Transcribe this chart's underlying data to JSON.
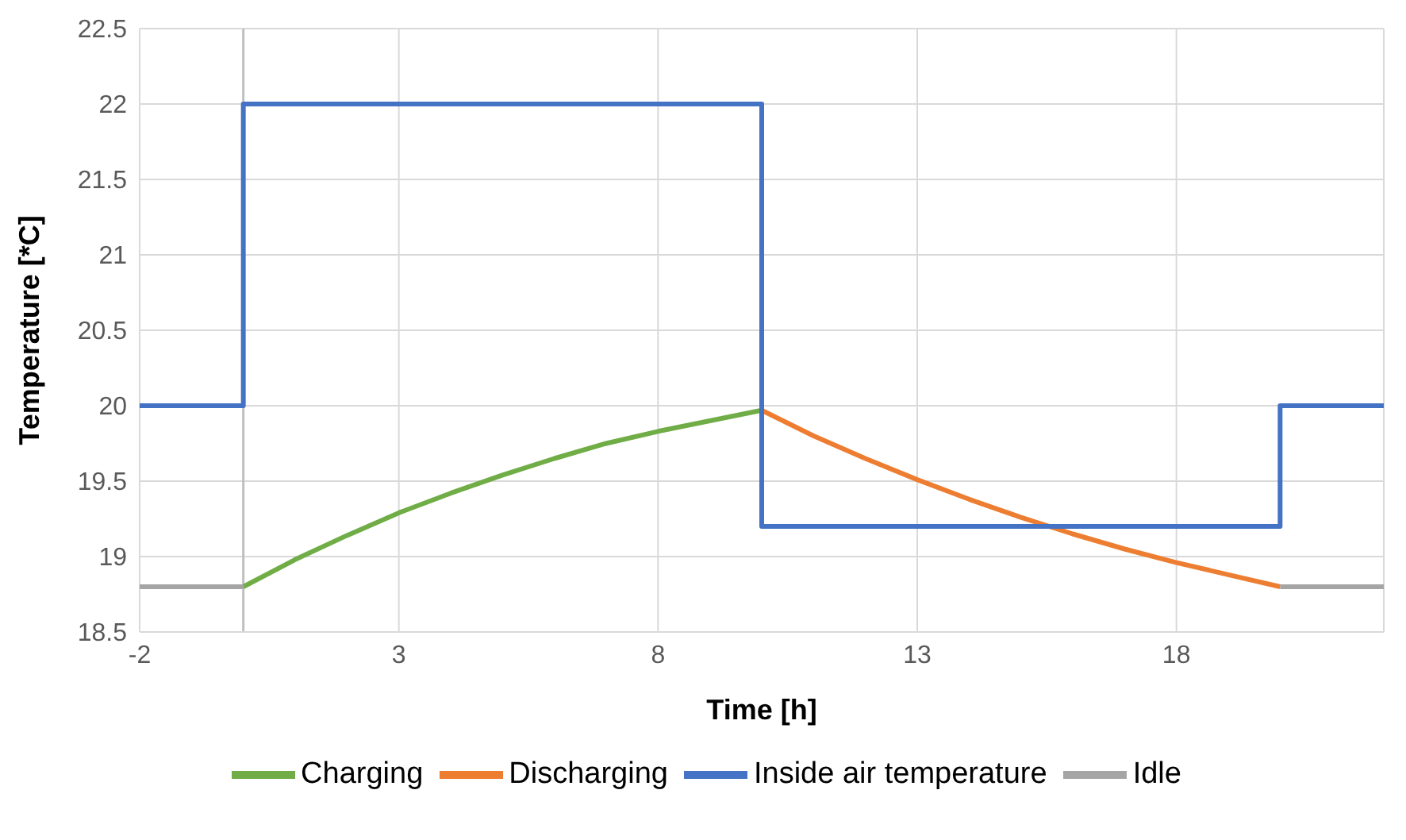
{
  "chart_data": {
    "type": "line",
    "xlabel": "Time [h]",
    "ylabel": "Temperature [*C]",
    "xlim": [
      -2,
      22
    ],
    "xticks": [
      -2,
      3,
      8,
      13,
      18
    ],
    "ylim": [
      18.5,
      22.5
    ],
    "yticks": [
      18.5,
      19,
      19.5,
      20,
      20.5,
      21,
      21.5,
      22,
      22.5
    ],
    "grid": true,
    "legend": "bottom",
    "marker": "none",
    "line_style": "solid",
    "ref_lines": [
      {
        "axis": "x",
        "value": 0,
        "color": "#bfbfbf"
      }
    ],
    "series": [
      {
        "name": "Charging",
        "color": "#70ad47",
        "x": [
          0,
          1,
          2,
          3,
          4,
          5,
          6,
          7,
          8,
          9,
          10
        ],
        "values": [
          18.8,
          18.98,
          19.14,
          19.29,
          19.42,
          19.54,
          19.65,
          19.75,
          19.83,
          19.9,
          19.97
        ]
      },
      {
        "name": "Discharging",
        "color": "#ed7d31",
        "x": [
          10,
          11,
          12,
          13,
          14,
          15,
          16,
          17,
          18,
          19,
          20
        ],
        "values": [
          19.97,
          19.8,
          19.65,
          19.51,
          19.38,
          19.26,
          19.15,
          19.05,
          18.96,
          18.88,
          18.8
        ]
      },
      {
        "name": "Inside air temperature",
        "type": "step",
        "color": "#4472c4",
        "x": [
          -2,
          0,
          10,
          20,
          22
        ],
        "values": [
          20,
          22,
          19.2,
          20,
          20
        ]
      },
      {
        "name": "Idle",
        "color": "#a5a5a5",
        "x": [
          -2,
          0,
          10,
          20,
          22
        ],
        "values": [
          18.8,
          18.8,
          null,
          18.8,
          18.8
        ]
      }
    ]
  }
}
